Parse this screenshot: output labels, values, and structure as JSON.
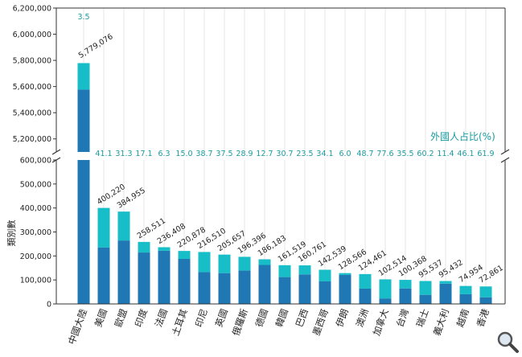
{
  "chart_data": {
    "type": "bar",
    "ylabel": "類別數",
    "legend_label": "外國人占比(%)",
    "broken_axis": true,
    "ylim_lower": [
      0,
      600000
    ],
    "ylim_upper": [
      5100000,
      6200000
    ],
    "yticks_lower": [
      "0",
      "100,000",
      "200,000",
      "300,000",
      "400,000",
      "500,000",
      "600,000"
    ],
    "yticks_upper": [
      "5,200,000",
      "5,400,000",
      "5,600,000",
      "5,800,000",
      "6,000,000",
      "6,200,000"
    ],
    "categories": [
      "中國大陸",
      "美國",
      "歐盟",
      "印度",
      "法國",
      "土耳其",
      "印尼",
      "英國",
      "俄羅斯",
      "德國",
      "韓國",
      "巴西",
      "墨西哥",
      "伊朗",
      "澳洲",
      "加拿大",
      "台灣",
      "瑞士",
      "義大利",
      "越南",
      "香港"
    ],
    "totals": [
      5779076,
      400220,
      384955,
      258511,
      236408,
      220878,
      216510,
      205657,
      196396,
      186183,
      161519,
      160761,
      142539,
      128566,
      124461,
      102514,
      100368,
      95537,
      95432,
      74954,
      72861
    ],
    "total_labels": [
      "5,779,076",
      "400,220",
      "384,955",
      "258,511",
      "236,408",
      "220,878",
      "216,510",
      "205,657",
      "196,396",
      "186,183",
      "161,519",
      "160,761",
      "142,539",
      "128,566",
      "124,461",
      "102,514",
      "100,368",
      "95,537",
      "95,432",
      "74,954",
      "72,861"
    ],
    "foreign_share_pct": [
      3.5,
      41.1,
      31.3,
      17.1,
      6.3,
      15.0,
      38.7,
      37.5,
      28.9,
      12.7,
      30.7,
      23.5,
      34.1,
      6.0,
      48.7,
      77.6,
      35.5,
      60.2,
      11.4,
      46.1,
      61.9
    ],
    "foreign_share_labels": [
      "3.5",
      "41.1",
      "31.3",
      "17.1",
      "6.3",
      "15.0",
      "38.7",
      "37.5",
      "28.9",
      "12.7",
      "30.7",
      "23.5",
      "34.1",
      "6.0",
      "48.7",
      "77.6",
      "35.5",
      "60.2",
      "11.4",
      "46.1",
      "61.9"
    ],
    "colors": {
      "domestic": "#1f77b4",
      "foreign": "#17bec7",
      "pct_text": "#1a9a9e",
      "grid": "#e6e6e6"
    }
  },
  "ui": {
    "zoom_icon": "magnifier-icon"
  }
}
